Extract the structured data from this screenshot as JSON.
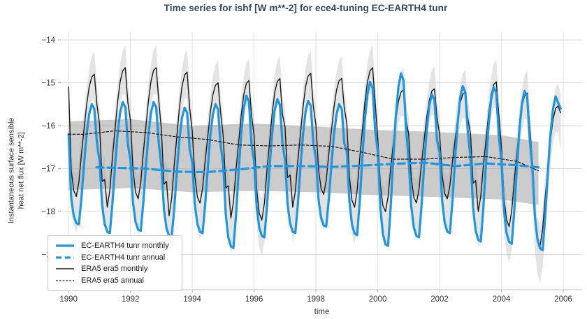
{
  "chart_data": {
    "type": "line",
    "title": "Time series for ishf [W m**-2] for ece4-tuning EC-EARTH4 tunr",
    "xlabel": "time",
    "ylabel": "Instantaneous surface sensible\nheat net flux [W m**-2]",
    "xlim": [
      1989.77,
      2006.61
    ],
    "ylim": [
      -19.82,
      -13.82
    ],
    "xticks": [
      1990,
      1992,
      1994,
      1996,
      1998,
      2000,
      2002,
      2004,
      2006
    ],
    "yticks": [
      -19,
      -18,
      -17,
      -16,
      -15,
      -14
    ],
    "grid": true,
    "legend_position": "lower left",
    "colors": {
      "model_blue": "#2196e0",
      "reference_black": "#1a1a1a",
      "monthly_band": "#cdcdcd",
      "annual_band": "#a9a9a9",
      "title": "#2e4b57"
    },
    "series": [
      {
        "name": "EC-EARTH4 tunr monthly",
        "color": "#2196e0",
        "width": 3.2,
        "dash": null,
        "cadence": "monthly",
        "start_year": 1990,
        "values": [
          -16.2,
          -17.68,
          -18.1,
          -18.27,
          -18.3,
          -17.68,
          -16.9,
          -16.2,
          -15.72,
          -15.5,
          -15.61,
          -16.4,
          -16.82,
          -17.83,
          -18.29,
          -18.47,
          -18.5,
          -17.83,
          -16.98,
          -16.21,
          -15.69,
          -15.45,
          -15.57,
          -16.43,
          -16.8,
          -17.79,
          -18.24,
          -18.42,
          -18.45,
          -17.79,
          -16.95,
          -16.2,
          -15.69,
          -15.45,
          -15.57,
          -16.41,
          -16.94,
          -17.94,
          -18.39,
          -18.57,
          -18.6,
          -17.94,
          -17.09,
          -16.34,
          -15.82,
          -15.58,
          -15.7,
          -16.55,
          -16.85,
          -17.84,
          -18.29,
          -18.47,
          -18.5,
          -17.84,
          -17.0,
          -16.25,
          -15.74,
          -15.5,
          -15.62,
          -16.46,
          -16.9,
          -18.07,
          -18.6,
          -18.81,
          -18.85,
          -18.07,
          -17.08,
          -16.19,
          -15.58,
          -15.3,
          -15.44,
          -16.44,
          -16.83,
          -17.89,
          -18.37,
          -18.57,
          -18.6,
          -17.89,
          -16.99,
          -16.19,
          -15.64,
          -15.38,
          -15.51,
          -16.41,
          -16.81,
          -17.82,
          -18.28,
          -18.47,
          -18.5,
          -17.82,
          -16.96,
          -16.19,
          -15.67,
          -15.42,
          -15.54,
          -16.41,
          -16.78,
          -17.72,
          -18.15,
          -18.32,
          -18.35,
          -17.72,
          -16.93,
          -16.21,
          -15.73,
          -15.5,
          -15.61,
          -16.41,
          -16.59,
          -17.76,
          -18.3,
          -18.51,
          -18.55,
          -17.76,
          -16.77,
          -15.87,
          -15.27,
          -14.98,
          -15.12,
          -16.12,
          -16.59,
          -17.92,
          -18.52,
          -18.76,
          -18.8,
          -17.92,
          -16.79,
          -15.79,
          -15.1,
          -14.78,
          -14.94,
          -16.07,
          -16.77,
          -17.87,
          -18.37,
          -18.57,
          -18.6,
          -17.87,
          -16.94,
          -16.1,
          -15.54,
          -15.27,
          -15.4,
          -16.34,
          -16.62,
          -17.75,
          -18.26,
          -18.47,
          -18.5,
          -17.75,
          -16.79,
          -15.94,
          -15.35,
          -15.08,
          -15.22,
          -16.17,
          -16.72,
          -17.91,
          -18.45,
          -18.66,
          -18.7,
          -17.91,
          -16.9,
          -16.0,
          -15.39,
          -15.1,
          -15.24,
          -16.25,
          -16.79,
          -17.97,
          -18.5,
          -18.71,
          -18.75,
          -17.97,
          -16.97,
          -16.08,
          -15.48,
          -15.19,
          -15.33,
          -16.33,
          -16.93,
          -18.11,
          -18.65,
          -18.86,
          -18.9,
          -18.11,
          -17.11,
          -16.22,
          -15.61,
          -15.32,
          -15.46,
          -15.6
        ]
      },
      {
        "name": "EC-EARTH4 tunr annual",
        "color": "#2196e0",
        "width": 3.2,
        "dash": [
          10,
          6
        ],
        "cadence": "annual",
        "x": [
          1990.9,
          1991.5,
          1992.5,
          1993.5,
          1994.5,
          1995.5,
          1996.5,
          1997.5,
          1998.5,
          1999.5,
          2000.5,
          2001.5,
          2002.5,
          2003.5,
          2004.5,
          2005.2
        ],
        "values": [
          -16.97,
          -16.98,
          -17.0,
          -17.07,
          -17.08,
          -17.02,
          -16.94,
          -16.94,
          -16.96,
          -16.93,
          -16.89,
          -16.86,
          -16.94,
          -16.88,
          -16.92,
          -16.97
        ]
      },
      {
        "name": "ERA5 era5 monthly",
        "color": "#1a1a1a",
        "width": 1.4,
        "dash": null,
        "cadence": "monthly",
        "start_year": 1990,
        "values": [
          -15.1,
          -17.02,
          -17.51,
          -17.65,
          -17.31,
          -16.65,
          -16.08,
          -15.51,
          -15.09,
          -14.86,
          -14.8,
          -15.51,
          -15.95,
          -17.3,
          -17.25,
          -17.9,
          -17.5,
          -16.76,
          -16.11,
          -15.46,
          -14.98,
          -14.72,
          -14.65,
          -15.46,
          -15.87,
          -17.03,
          -17.55,
          -17.7,
          -17.33,
          -16.63,
          -16.02,
          -15.41,
          -14.96,
          -14.71,
          -14.65,
          -15.41,
          -16.09,
          -17.36,
          -17.3,
          -18.1,
          -17.7,
          -16.93,
          -16.26,
          -15.59,
          -15.09,
          -14.82,
          -14.75,
          -15.59,
          -16.12,
          -17.18,
          -17.66,
          -17.8,
          -17.46,
          -16.82,
          -16.26,
          -15.7,
          -15.28,
          -15.06,
          -15.0,
          -15.7,
          -16.23,
          -17.45,
          -17.4,
          -18.15,
          -17.77,
          -17.03,
          -16.39,
          -15.75,
          -15.27,
          -15.01,
          -14.95,
          -15.75,
          -16.22,
          -17.47,
          -18.04,
          -18.2,
          -17.8,
          -17.05,
          -16.39,
          -15.73,
          -15.23,
          -14.97,
          -14.9,
          -15.73,
          -16.03,
          -17.21,
          -17.15,
          -17.9,
          -17.53,
          -16.81,
          -16.18,
          -15.56,
          -15.09,
          -14.84,
          -14.78,
          -15.56,
          -15.98,
          -17.01,
          -17.47,
          -17.6,
          -17.28,
          -16.66,
          -16.12,
          -15.58,
          -15.17,
          -14.95,
          -14.9,
          -15.58,
          -15.95,
          -17.19,
          -17.74,
          -17.9,
          -17.51,
          -16.76,
          -16.11,
          -15.46,
          -14.98,
          -14.72,
          -14.65,
          -15.46,
          -16.3,
          -17.38,
          -17.86,
          -18.0,
          -17.66,
          -17.01,
          -16.44,
          -15.87,
          -15.44,
          -15.22,
          -15.16,
          -15.87,
          -16.2,
          -17.21,
          -17.67,
          -17.8,
          -17.48,
          -16.87,
          -16.34,
          -15.81,
          -15.41,
          -15.19,
          -15.14,
          -15.81,
          -16.21,
          -17.15,
          -17.58,
          -17.7,
          -17.4,
          -16.83,
          -16.34,
          -15.84,
          -15.47,
          -15.27,
          -15.22,
          -15.84,
          -16.19,
          -17.34,
          -17.28,
          -18.0,
          -17.64,
          -16.94,
          -16.34,
          -15.74,
          -15.28,
          -15.04,
          -14.98,
          -15.74,
          -16.48,
          -17.67,
          -18.19,
          -18.35,
          -17.98,
          -17.26,
          -16.64,
          -16.02,
          -15.55,
          -15.3,
          -15.24,
          -16.02,
          -16.84,
          -18.08,
          -18.64,
          -18.8,
          -18.41,
          -17.66,
          -17.01,
          -16.36,
          -15.87,
          -15.6,
          -15.54,
          -15.7
        ]
      },
      {
        "name": "ERA5 era5 annual",
        "color": "#1a1a1a",
        "width": 1.2,
        "dash": [
          3.5,
          2.5
        ],
        "cadence": "annual",
        "x": [
          1990.0,
          1990.5,
          1991.5,
          1992.5,
          1993.5,
          1994.5,
          1995.5,
          1996.5,
          1997.5,
          1998.5,
          1999.5,
          2000.5,
          2001.5,
          2002.5,
          2003.5,
          2004.5,
          2005.2
        ],
        "values": [
          -16.2,
          -16.2,
          -16.12,
          -16.16,
          -16.26,
          -16.32,
          -16.45,
          -16.47,
          -16.45,
          -16.48,
          -16.62,
          -16.78,
          -16.78,
          -16.74,
          -16.72,
          -16.83,
          -17.05
        ]
      }
    ],
    "bands": [
      {
        "name": "era5-monthly-spread",
        "around_series": 2,
        "upper_offset_by_month": [
          0.4,
          0.45,
          0.5,
          0.5,
          0.5,
          0.45,
          0.42,
          0.4,
          0.42,
          0.48,
          0.52,
          0.42
        ],
        "lower_offset_by_month": [
          0.9,
          0.85,
          0.8,
          0.85,
          0.9,
          0.8,
          0.68,
          0.58,
          0.52,
          0.55,
          0.62,
          0.88
        ],
        "color": "#cdcdcd",
        "opacity": 0.55
      },
      {
        "name": "era5-annual-spread",
        "x": [
          1990.0,
          1992,
          1994,
          1996,
          1998,
          2000,
          2002,
          2004,
          2005.2
        ],
        "upper": [
          -15.9,
          -15.85,
          -16.0,
          -15.95,
          -16.02,
          -16.1,
          -16.15,
          -16.22,
          -16.38
        ],
        "lower": [
          -17.5,
          -17.45,
          -17.55,
          -17.52,
          -17.55,
          -17.62,
          -17.66,
          -17.72,
          -17.85
        ],
        "color": "#a9a9a9",
        "opacity": 0.6
      }
    ]
  },
  "legend": {
    "items": [
      {
        "label": "EC-EARTH4 tunr monthly",
        "series_index": 0
      },
      {
        "label": "EC-EARTH4 tunr annual",
        "series_index": 1
      },
      {
        "label": "ERA5 era5 monthly",
        "series_index": 2
      },
      {
        "label": "ERA5 era5 annual",
        "series_index": 3
      }
    ]
  }
}
